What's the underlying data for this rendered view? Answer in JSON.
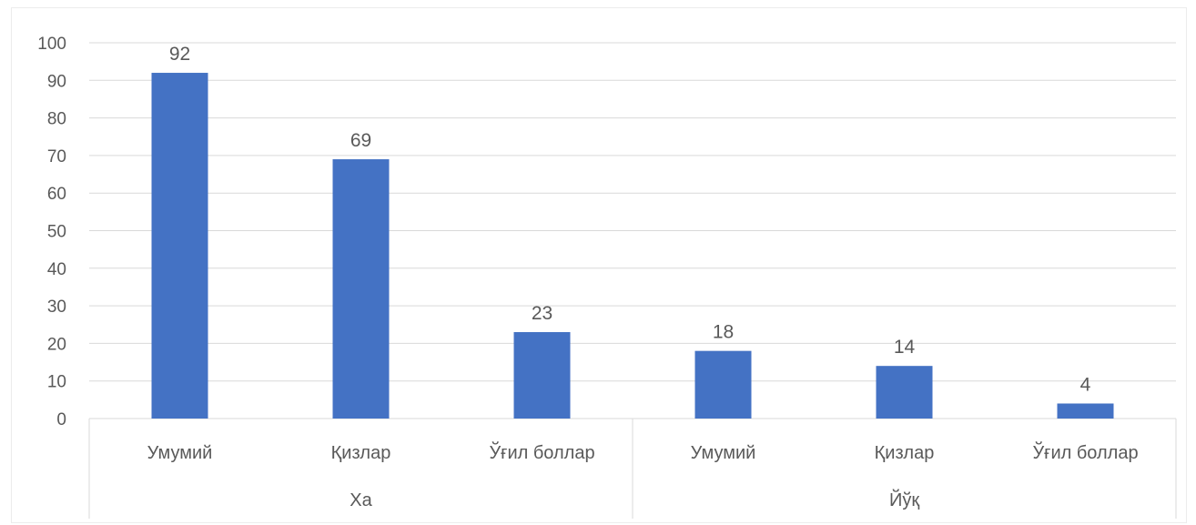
{
  "chart_data": {
    "type": "bar",
    "groups": [
      {
        "label": "Ха",
        "categories": [
          "Умумий",
          "Қизлар",
          "Ўғил боллар"
        ],
        "values": [
          92,
          69,
          23
        ]
      },
      {
        "label": "Йўқ",
        "categories": [
          "Умумий",
          "Қизлар",
          "Ўғил боллар"
        ],
        "values": [
          18,
          14,
          4
        ]
      }
    ],
    "yticks": [
      "0",
      "10",
      "20",
      "30",
      "40",
      "50",
      "60",
      "70",
      "80",
      "90",
      "100"
    ],
    "ylim": [
      0,
      100
    ],
    "grid": true,
    "legend": "none",
    "bar_color": "#4472C4",
    "grid_color": "#d9d9d9",
    "text_color": "#595959"
  }
}
